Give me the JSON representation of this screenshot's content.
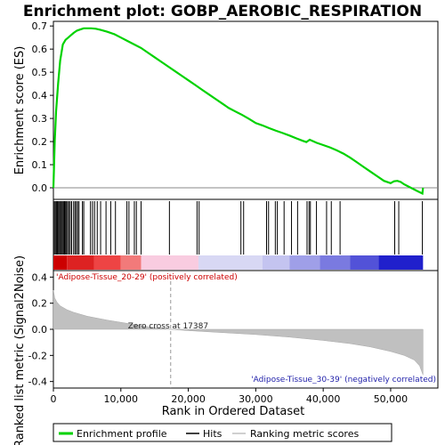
{
  "chart_data": {
    "type": "line",
    "title": "Enrichment plot: GOBP_AEROBIC_RESPIRATION",
    "panels": {
      "enrichment": {
        "ylabel": "Enrichment score (ES)",
        "ylim": [
          -0.05,
          0.72
        ],
        "yticks": [
          "0.0",
          "0.1",
          "0.2",
          "0.3",
          "0.4",
          "0.5",
          "0.6",
          "0.7"
        ],
        "ytick_values": [
          0.0,
          0.1,
          0.2,
          0.3,
          0.4,
          0.5,
          0.6,
          0.7
        ],
        "series": [
          {
            "name": "Enrichment profile",
            "color": "#00d200",
            "x": [
              0,
              200,
              400,
              700,
              1000,
              1400,
              1800,
              2200,
              2600,
              3000,
              3500,
              4000,
              4500,
              5000,
              5600,
              6300,
              7000,
              8000,
              9000,
              10000,
              11000,
              12000,
              13000,
              14000,
              15000,
              16000,
              17000,
              18000,
              19000,
              20000,
              21000,
              22000,
              23000,
              24000,
              25000,
              26000,
              27000,
              28000,
              29000,
              30000,
              31000,
              32000,
              33000,
              34000,
              35000,
              36000,
              37000,
              37500,
              38000,
              39000,
              40000,
              41000,
              42000,
              43000,
              44000,
              45000,
              46000,
              47000,
              48000,
              49000,
              50000,
              50500,
              51000,
              51500,
              52000,
              53000,
              54000,
              54700,
              54800
            ],
            "values": [
              0.0,
              0.2,
              0.33,
              0.45,
              0.55,
              0.62,
              0.64,
              0.65,
              0.66,
              0.67,
              0.68,
              0.685,
              0.69,
              0.69,
              0.69,
              0.688,
              0.683,
              0.675,
              0.665,
              0.65,
              0.635,
              0.62,
              0.605,
              0.585,
              0.565,
              0.545,
              0.525,
              0.505,
              0.485,
              0.465,
              0.445,
              0.425,
              0.405,
              0.385,
              0.365,
              0.345,
              0.33,
              0.315,
              0.298,
              0.28,
              0.27,
              0.258,
              0.247,
              0.237,
              0.226,
              0.214,
              0.203,
              0.198,
              0.208,
              0.195,
              0.185,
              0.175,
              0.162,
              0.148,
              0.13,
              0.11,
              0.09,
              0.07,
              0.05,
              0.03,
              0.02,
              0.028,
              0.03,
              0.025,
              0.015,
              0.0,
              -0.015,
              -0.025,
              0.0
            ]
          }
        ]
      },
      "hits": {
        "positions": [
          150,
          300,
          450,
          600,
          750,
          900,
          1050,
          1200,
          1350,
          1500,
          1650,
          1800,
          1950,
          2100,
          2300,
          2500,
          2700,
          3000,
          3200,
          3400,
          3600,
          3800,
          4300,
          4500,
          5500,
          5800,
          6100,
          6500,
          7000,
          7800,
          8500,
          9200,
          10900,
          11200,
          12000,
          12300,
          13000,
          17200,
          21300,
          21600,
          27800,
          28200,
          31600,
          31900,
          32900,
          33200,
          34200,
          35300,
          36200,
          37600,
          37900,
          38100,
          39000,
          40500,
          41200,
          42500,
          50600,
          51200,
          54700
        ]
      },
      "ranking": {
        "ylabel": "Ranked list metric (Signal2Noise)",
        "ylim": [
          -0.45,
          0.45
        ],
        "yticks": [
          "-0.4",
          "-0.2",
          "0.0",
          "0.2",
          "0.4"
        ],
        "ytick_values": [
          -0.4,
          -0.2,
          0.0,
          0.2,
          0.4
        ],
        "x": [
          0,
          200,
          500,
          1000,
          2000,
          3000,
          5000,
          8000,
          11000,
          14000,
          17387,
          20000,
          25000,
          30000,
          35000,
          40000,
          44000,
          47000,
          50000,
          52000,
          53500,
          54300,
          54800
        ],
        "values": [
          0.3,
          0.24,
          0.21,
          0.18,
          0.15,
          0.13,
          0.1,
          0.07,
          0.045,
          0.02,
          0.0,
          -0.01,
          -0.025,
          -0.04,
          -0.06,
          -0.085,
          -0.11,
          -0.135,
          -0.17,
          -0.2,
          -0.235,
          -0.28,
          -0.35
        ],
        "zero_cross_label": "Zero cross at 17387",
        "zero_cross": 17387,
        "positive_label": "'Adipose-Tissue_20-29' (positively correlated)",
        "negative_label": "'Adipose-Tissue_30-39' (negatively correlated)"
      }
    },
    "xlabel": "Rank in Ordered Dataset",
    "xlim": [
      0,
      57000
    ],
    "xticks": [
      "0",
      "10,000",
      "20,000",
      "30,000",
      "40,000",
      "50,000"
    ],
    "xtick_values": [
      0,
      10000,
      20000,
      30000,
      40000,
      50000
    ],
    "legend": {
      "placement": "bottom",
      "entries": [
        {
          "label": "Enrichment profile",
          "color": "#00d200"
        },
        {
          "label": "Hits",
          "color": "#000000"
        },
        {
          "label": "Ranking metric scores",
          "color": "#c0c0c0"
        }
      ]
    },
    "heatmap_bar": {
      "segments": [
        {
          "x0": 0,
          "x1": 2000,
          "color": "#cc0000"
        },
        {
          "x0": 2000,
          "x1": 6000,
          "color": "#dd2222"
        },
        {
          "x0": 6000,
          "x1": 10000,
          "color": "#ee4444"
        },
        {
          "x0": 10000,
          "x1": 13000,
          "color": "#f27a7a"
        },
        {
          "x0": 13000,
          "x1": 21500,
          "color": "#f9cce0"
        },
        {
          "x0": 21500,
          "x1": 31000,
          "color": "#d8d8f4"
        },
        {
          "x0": 31000,
          "x1": 35000,
          "color": "#c4c4f0"
        },
        {
          "x0": 35000,
          "x1": 39500,
          "color": "#9f9fe8"
        },
        {
          "x0": 39500,
          "x1": 44000,
          "color": "#7a7ae0"
        },
        {
          "x0": 44000,
          "x1": 48200,
          "color": "#5252d8"
        },
        {
          "x0": 48200,
          "x1": 54800,
          "color": "#2020cc"
        }
      ]
    }
  }
}
